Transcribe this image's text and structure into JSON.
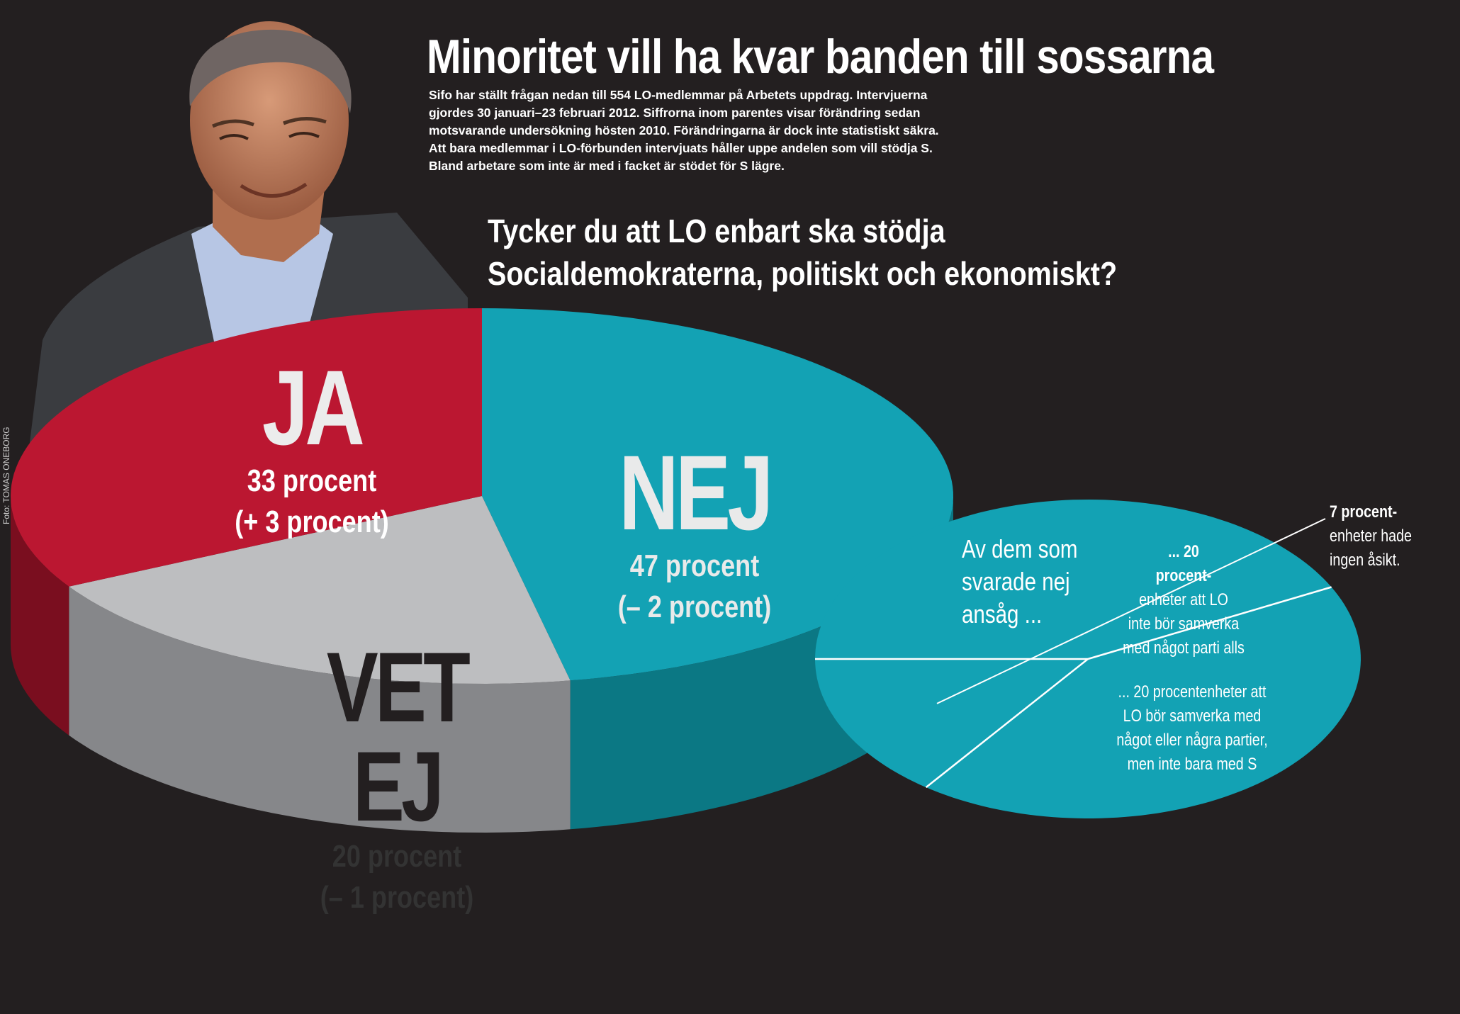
{
  "headline": "Minoritet vill ha kvar banden till sossarna",
  "intro_lines": [
    "Sifo har ställt frågan nedan till 554 LO-medlemmar på Arbetets uppdrag. Intervjuerna",
    "gjordes 30 januari–23 februari 2012. Siffrorna inom parentes visar förändring sedan",
    "motsvarande undersökning hösten 2010. Förändringarna är dock inte statistiskt säkra.",
    "Att bara medlemmar i LO-förbunden intervjuats håller uppe andelen som vill stödja S.",
    "Bland arbetare som inte är med i facket är stödet för S lägre."
  ],
  "photo_credit": "Foto: TOMAS ONEBORG",
  "colors": {
    "background": "#231f20",
    "ja": "#bb1731",
    "ja_side": "#7a0e1f",
    "nej": "#13a2b4",
    "nej_side": "#0b7884",
    "vet_ej": "#bdbec0",
    "vet_ej_side": "#86878a",
    "arrow": "#13b5c7"
  },
  "chart_data": [
    {
      "type": "pie",
      "title_lines": [
        "Tycker du att LO enbart ska stödja",
        "Socialdemokraterna, politiskt och ekonomiskt?"
      ],
      "slices": [
        {
          "key": "ja",
          "name": "JA",
          "value": 33,
          "label": "33 procent",
          "change": "(+ 3 procent)",
          "color": "#bb1731"
        },
        {
          "key": "nej",
          "name": "NEJ",
          "value": 47,
          "label": "47 procent",
          "change": "(– 2 procent)",
          "color": "#13a2b4"
        },
        {
          "key": "vet_ej",
          "name": "VET EJ",
          "value": 20,
          "label": "20 procent",
          "change": "(– 1 procent)",
          "color": "#bdbec0"
        }
      ]
    },
    {
      "type": "pie",
      "lead_lines": [
        "Av dem som",
        "svarade nej",
        "ansåg ..."
      ],
      "slices": [
        {
          "key": "ingen_parti",
          "value": 20,
          "unit": "procentenheter",
          "text_lines": [
            "... 20",
            "procent-",
            "enheter att LO",
            "inte bör samverka",
            "med något parti alls"
          ]
        },
        {
          "key": "nagra_partier",
          "value": 20,
          "unit": "procentenheter",
          "text_lines": [
            "... 20 procentenheter att",
            "LO bör samverka med",
            "något eller några partier,",
            "men inte bara med S"
          ]
        },
        {
          "key": "ingen_asikt",
          "value": 7,
          "unit": "procentenheter",
          "text_lines": [
            "7 procent-",
            "enheter hade",
            "ingen åsikt."
          ]
        }
      ]
    }
  ]
}
